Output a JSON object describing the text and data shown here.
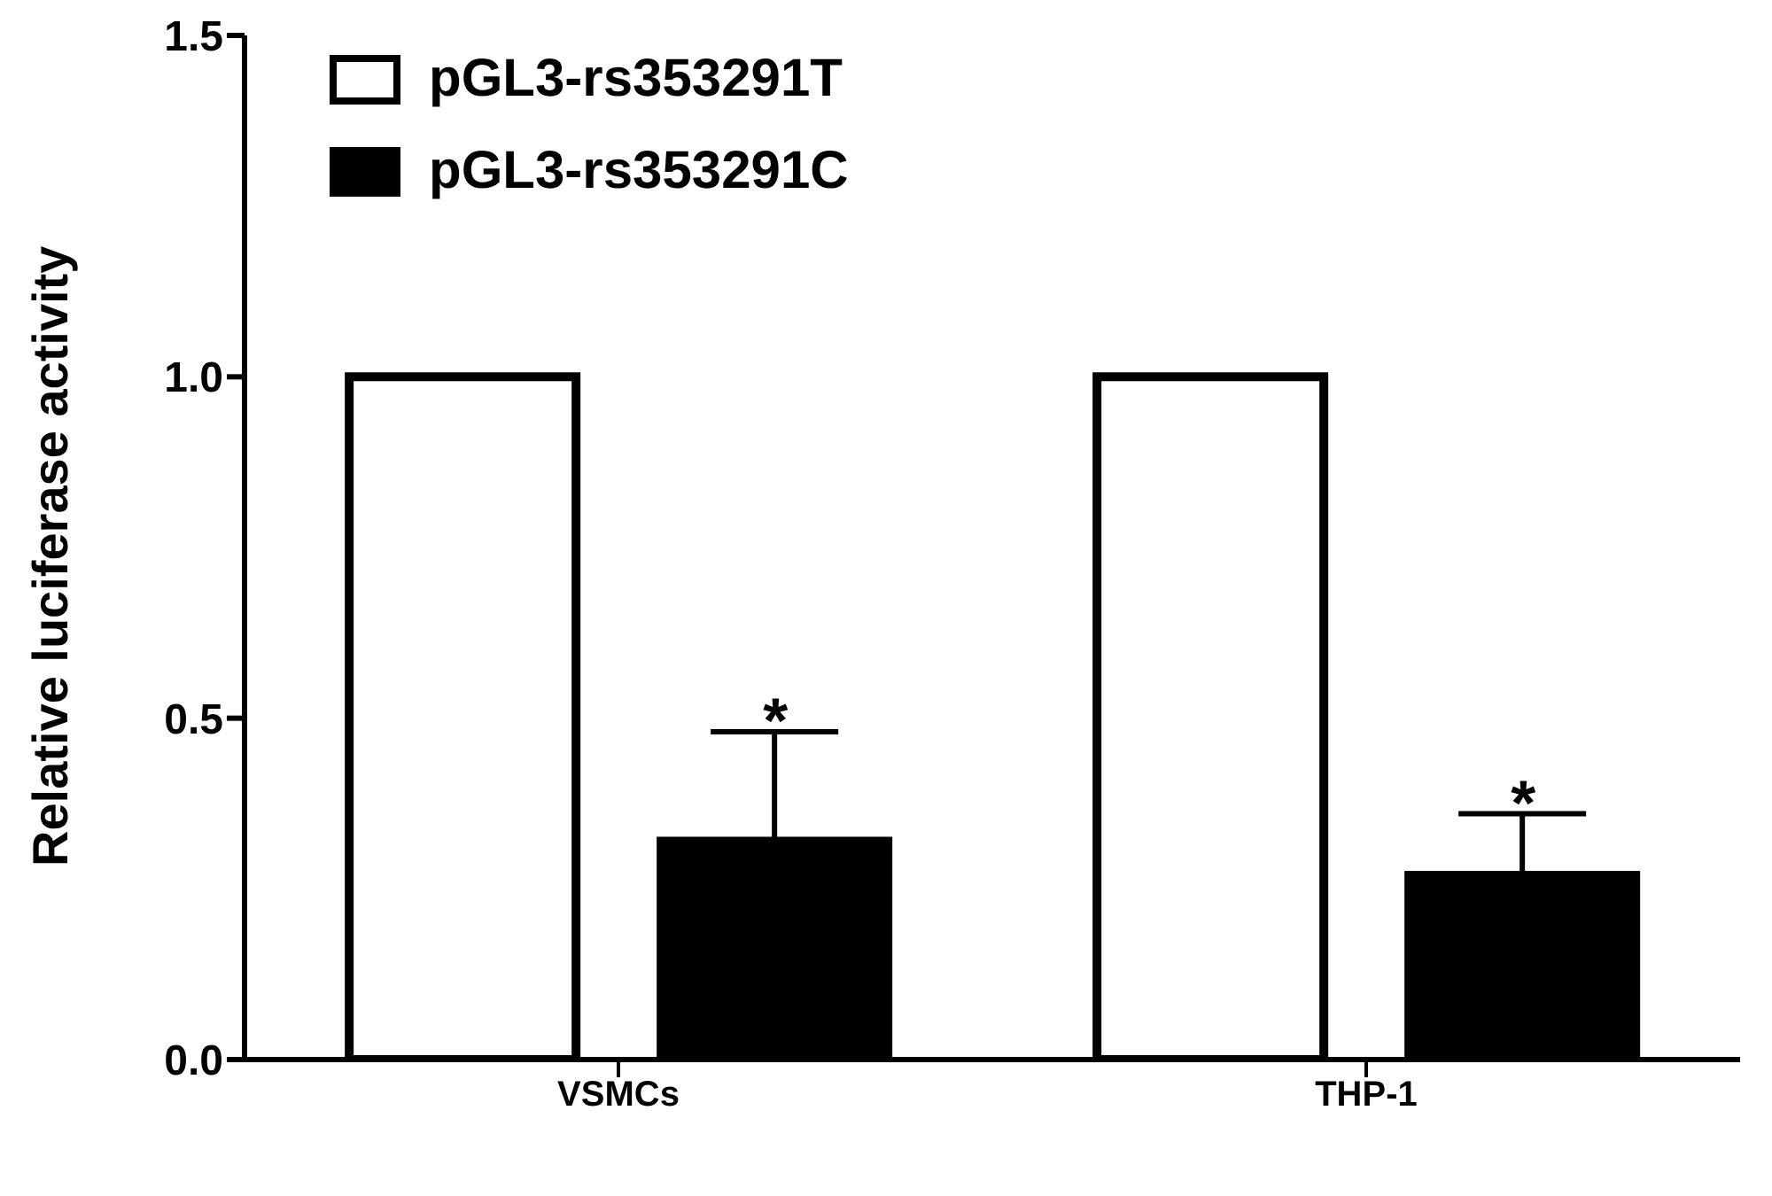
{
  "chart_data": {
    "type": "bar",
    "ylabel": "Relative luciferase activity",
    "categories": [
      "VSMCs",
      "THP-1"
    ],
    "series": [
      {
        "name": "pGL3-rs353291T",
        "color": "#ffffff",
        "values": [
          1.0,
          1.0
        ]
      },
      {
        "name": "pGL3-rs353291C",
        "color": "#000000",
        "values": [
          0.32,
          0.27
        ],
        "errors": [
          [
            0.32,
            0.48
          ],
          [
            0.27,
            0.36
          ]
        ]
      }
    ],
    "ylim": [
      0,
      1.5
    ],
    "yticks": [
      {
        "value": 0,
        "label": "0.0"
      },
      {
        "value": 0.5,
        "label": "0.5"
      },
      {
        "value": 1,
        "label": "1.0"
      },
      {
        "value": 1.5,
        "label": "1.5"
      }
    ],
    "grid": false,
    "legend": "top left",
    "annotations": [
      "*",
      "*"
    ]
  }
}
